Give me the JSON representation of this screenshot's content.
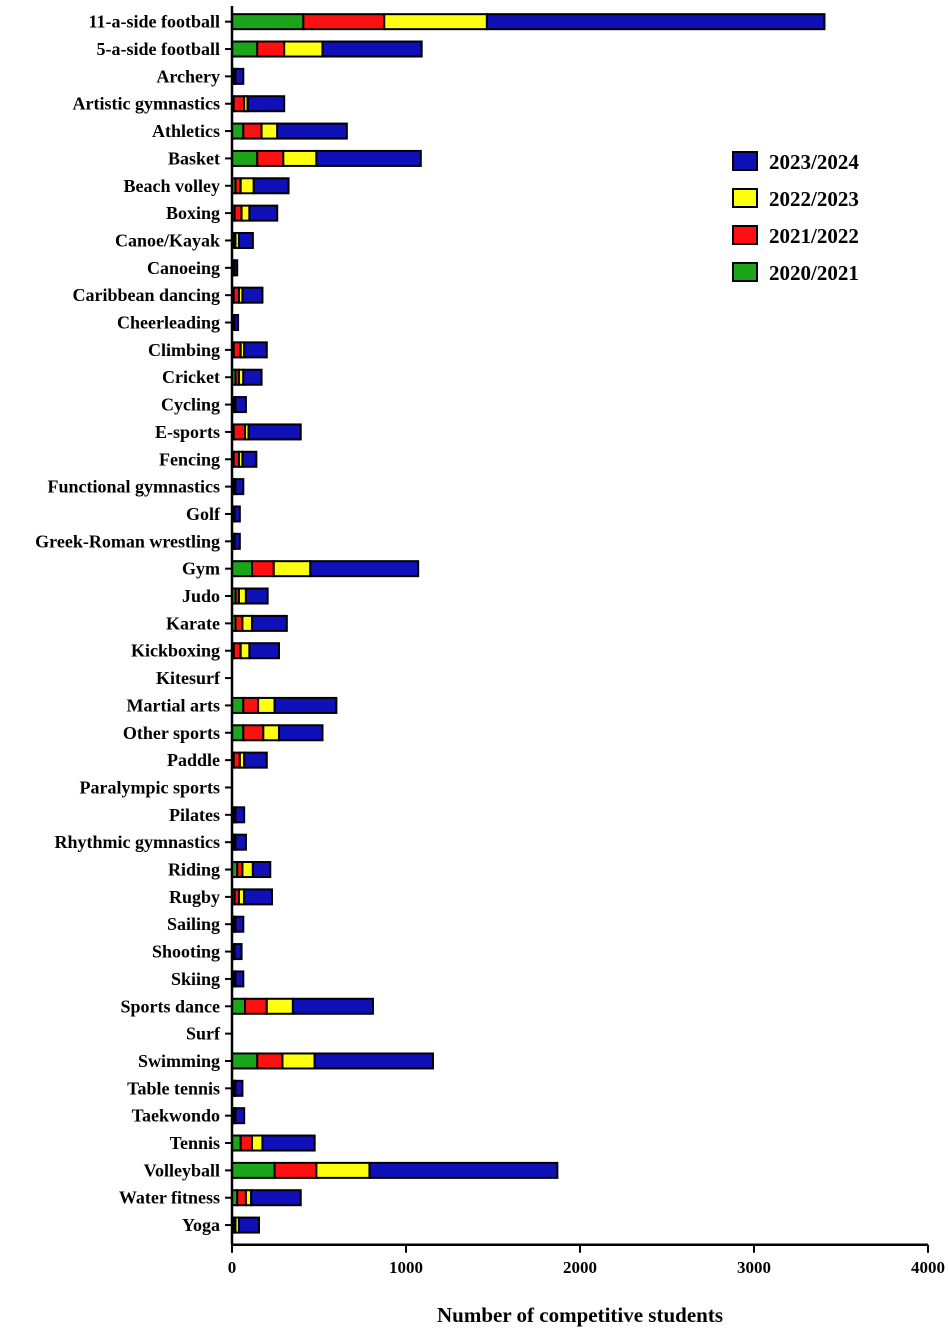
{
  "chart_data": {
    "type": "bar",
    "orientation": "horizontal",
    "stacked": true,
    "xlabel": "Number of competitive students",
    "ylabel": "",
    "xlim": [
      0,
      4000
    ],
    "xticks": [
      0,
      1000,
      2000,
      3000,
      4000
    ],
    "grid": false,
    "legend_position": "top-right",
    "categories": [
      "11-a-side football",
      "5-a-side football",
      "Archery",
      "Artistic gymnastics",
      "Athletics",
      "Basket",
      "Beach volley",
      "Boxing",
      "Canoe/Kayak",
      "Canoeing",
      "Caribbean dancing",
      "Cheerleading",
      "Climbing",
      "Cricket",
      "Cycling",
      "E-sports",
      "Fencing",
      "Functional gymnastics",
      "Golf",
      "Greek-Roman wrestling",
      "Gym",
      "Judo",
      "Karate",
      "Kickboxing",
      "Kitesurf",
      "Martial arts",
      "Other sports",
      "Paddle",
      "Paralympic sports",
      "Pilates",
      "Rhythmic gymnastics",
      "Riding",
      "Rugby",
      "Sailing",
      "Shooting",
      "Skiing",
      "Sports dance",
      "Surf",
      "Swimming",
      "Table tennis",
      "Taekwondo",
      "Tennis",
      "Volleyball",
      "Water fitness",
      "Yoga"
    ],
    "series": [
      {
        "name": "2020/2021",
        "color": "#1aa51a",
        "values": [
          410,
          145,
          5,
          10,
          65,
          145,
          20,
          15,
          10,
          5,
          10,
          5,
          10,
          20,
          5,
          10,
          10,
          5,
          5,
          5,
          115,
          20,
          20,
          10,
          0,
          65,
          65,
          10,
          0,
          5,
          5,
          30,
          15,
          5,
          5,
          5,
          75,
          0,
          145,
          5,
          5,
          50,
          245,
          30,
          10
        ]
      },
      {
        "name": "2021/2022",
        "color": "#ff1010",
        "values": [
          465,
          155,
          5,
          60,
          105,
          150,
          30,
          40,
          10,
          5,
          30,
          5,
          40,
          20,
          5,
          65,
          30,
          5,
          5,
          5,
          125,
          20,
          40,
          40,
          0,
          85,
          115,
          35,
          0,
          5,
          5,
          30,
          25,
          5,
          5,
          5,
          125,
          0,
          145,
          5,
          5,
          65,
          240,
          50,
          10
        ]
      },
      {
        "name": "2022/2023",
        "color": "#ffff10",
        "values": [
          590,
          220,
          10,
          20,
          90,
          190,
          75,
          45,
          20,
          5,
          20,
          5,
          20,
          25,
          10,
          20,
          20,
          10,
          5,
          5,
          210,
          40,
          55,
          50,
          0,
          95,
          90,
          25,
          0,
          10,
          10,
          60,
          30,
          10,
          5,
          10,
          150,
          0,
          185,
          10,
          10,
          60,
          305,
          30,
          20
        ]
      },
      {
        "name": "2023/2024",
        "color": "#1010b8",
        "values": [
          1940,
          570,
          45,
          210,
          400,
          600,
          200,
          160,
          80,
          15,
          115,
          20,
          130,
          105,
          60,
          300,
          80,
          45,
          30,
          30,
          620,
          125,
          200,
          170,
          0,
          355,
          250,
          130,
          0,
          50,
          60,
          100,
          160,
          45,
          40,
          45,
          460,
          0,
          680,
          40,
          50,
          300,
          1080,
          285,
          115
        ]
      }
    ]
  }
}
